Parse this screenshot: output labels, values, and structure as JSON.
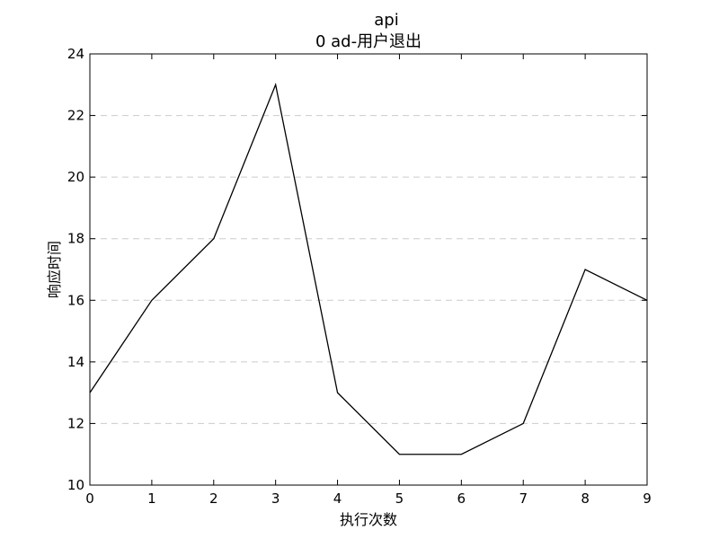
{
  "chart_data": {
    "type": "line",
    "title_line1": "api",
    "title_line2": "0  ad-用户退出",
    "xlabel": "执行次数",
    "ylabel": "响应时间",
    "x": [
      0,
      1,
      2,
      3,
      4,
      5,
      6,
      7,
      8,
      9
    ],
    "series": [
      {
        "values": [
          13,
          16,
          18,
          23,
          13,
          11,
          11,
          12,
          17,
          16
        ]
      }
    ],
    "xlim": [
      0,
      9
    ],
    "ylim": [
      10,
      24
    ],
    "xticks": [
      "0",
      "1",
      "2",
      "3",
      "4",
      "5",
      "6",
      "7",
      "8",
      "9"
    ],
    "yticks": [
      "10",
      "12",
      "14",
      "16",
      "18",
      "20",
      "22",
      "24"
    ],
    "grid": "y-dashed",
    "line_color": "#000000",
    "grid_color": "#cccccc"
  }
}
